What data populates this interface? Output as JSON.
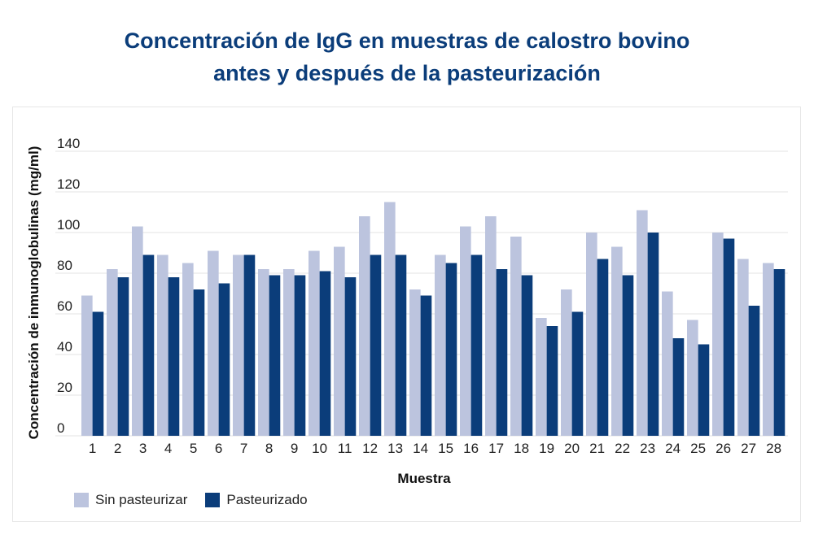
{
  "title_line1": "Concentración de IgG en muestras de calostro bovino",
  "title_line2": "antes y después de la pasteurización",
  "chart_data": {
    "type": "bar",
    "xlabel": "Muestra",
    "ylabel": "Concentración de inmunoglobulinas (mg/ml)",
    "ylim": [
      0,
      140
    ],
    "yticks": [
      0,
      20,
      40,
      60,
      80,
      100,
      120,
      140
    ],
    "categories": [
      "1",
      "2",
      "3",
      "4",
      "5",
      "6",
      "7",
      "8",
      "9",
      "10",
      "11",
      "12",
      "13",
      "14",
      "15",
      "16",
      "17",
      "18",
      "19",
      "20",
      "21",
      "22",
      "23",
      "24",
      "25",
      "26",
      "27",
      "28"
    ],
    "series": [
      {
        "name": "Sin pasteurizar",
        "color": "#bcc4de",
        "values": [
          69,
          82,
          103,
          89,
          85,
          91,
          89,
          82,
          82,
          91,
          93,
          108,
          115,
          72,
          89,
          103,
          108,
          98,
          58,
          72,
          100,
          93,
          111,
          71,
          57,
          100,
          87,
          85
        ]
      },
      {
        "name": "Pasteurizado",
        "color": "#0b3d7a",
        "values": [
          61,
          78,
          89,
          78,
          72,
          75,
          89,
          79,
          79,
          81,
          78,
          89,
          89,
          69,
          85,
          89,
          82,
          79,
          54,
          61,
          87,
          79,
          100,
          48,
          45,
          97,
          64,
          82
        ]
      }
    ],
    "grid": true,
    "legend_position": "bottom-left"
  }
}
